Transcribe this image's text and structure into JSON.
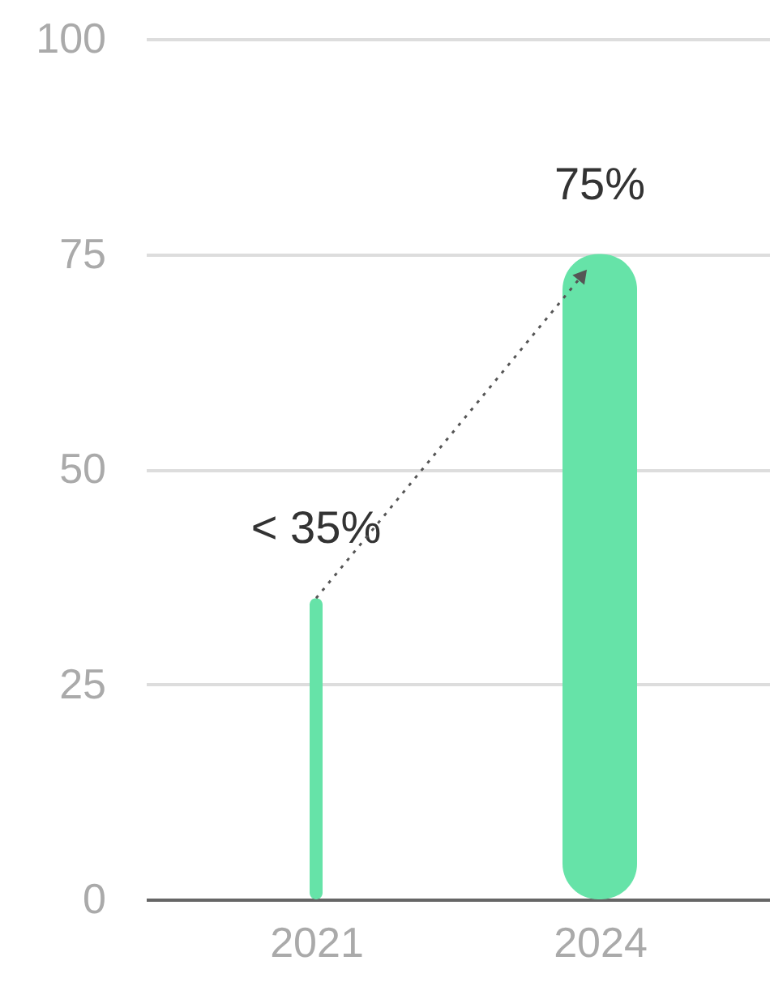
{
  "chart_data": {
    "type": "bar",
    "categories": [
      "2021",
      "2024"
    ],
    "values": [
      35,
      75
    ],
    "value_labels": [
      "< 35%",
      "75%"
    ],
    "colors": [
      "#66e3a8",
      "#66e3a8"
    ],
    "ylim": [
      0,
      100
    ],
    "yticks": [
      0,
      25,
      50,
      75,
      100
    ],
    "grid": "y"
  }
}
